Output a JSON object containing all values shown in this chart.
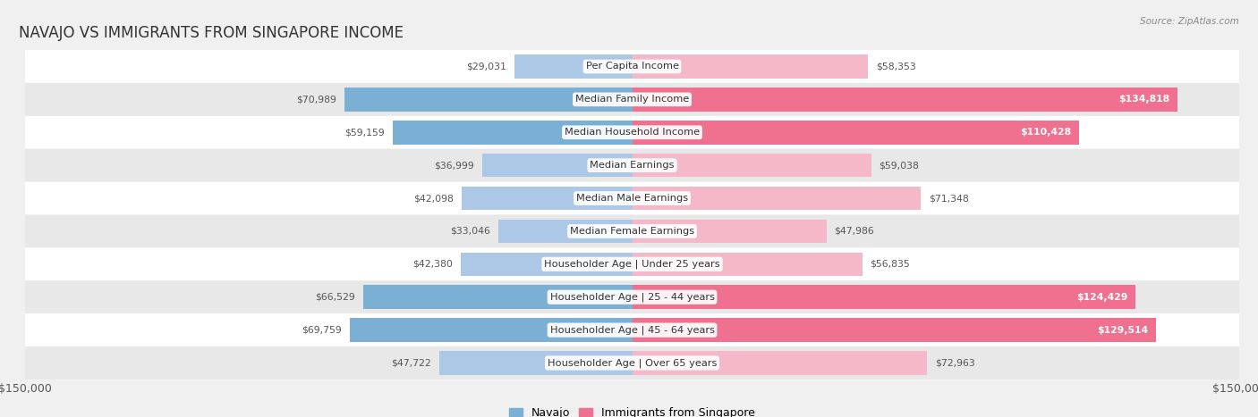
{
  "title": "NAVAJO VS IMMIGRANTS FROM SINGAPORE INCOME",
  "source": "Source: ZipAtlas.com",
  "categories": [
    "Per Capita Income",
    "Median Family Income",
    "Median Household Income",
    "Median Earnings",
    "Median Male Earnings",
    "Median Female Earnings",
    "Householder Age | Under 25 years",
    "Householder Age | 25 - 44 years",
    "Householder Age | 45 - 64 years",
    "Householder Age | Over 65 years"
  ],
  "navajo": [
    29031,
    70989,
    59159,
    36999,
    42098,
    33046,
    42380,
    66529,
    69759,
    47722
  ],
  "singapore": [
    58353,
    134818,
    110428,
    59038,
    71348,
    47986,
    56835,
    124429,
    129514,
    72963
  ],
  "navajo_color_light": "#adc8e6",
  "navajo_color_dark": "#7bafd4",
  "singapore_color_light": "#f4b8c8",
  "singapore_color_dark": "#f07090",
  "max_value": 150000,
  "bg_color": "#f0f0f0",
  "row_bg_even": "#ffffff",
  "row_bg_odd": "#e8e8e8",
  "legend_navajo": "Navajo",
  "legend_singapore": "Immigrants from Singapore",
  "title_fontsize": 12,
  "label_fontsize": 8.2,
  "value_fontsize": 7.8,
  "inside_threshold": 100000
}
